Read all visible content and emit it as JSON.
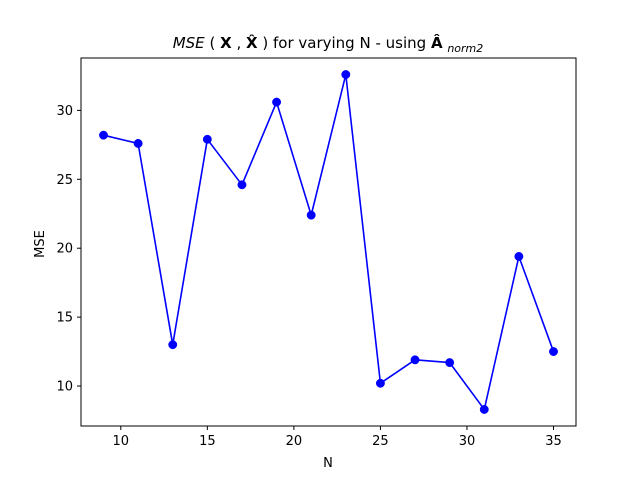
{
  "chart_data": {
    "type": "line",
    "title": "MSE(X, X̂) for varying N - using Â_norm2",
    "title_parts": {
      "mse": "MSE",
      "open": "(",
      "x": "X",
      "comma": ", ",
      "xhat": "X̂",
      "close": ")",
      "middle": " for varying N - using ",
      "ahat": "Â",
      "subscript": "norm2"
    },
    "xlabel": "N",
    "ylabel": "MSE",
    "xlim": [
      7.7,
      36.3
    ],
    "ylim": [
      7.1,
      33.8
    ],
    "xticks": [
      10,
      15,
      20,
      25,
      30,
      35
    ],
    "yticks": [
      10,
      15,
      20,
      25,
      30
    ],
    "grid": false,
    "legend": "none",
    "series": [
      {
        "color": "#0000ff",
        "marker": "circle",
        "x": [
          9,
          11,
          13,
          15,
          17,
          19,
          21,
          23,
          25,
          27,
          29,
          31,
          33,
          35
        ],
        "y": [
          28.2,
          27.6,
          13.0,
          27.9,
          24.6,
          30.6,
          22.4,
          32.6,
          10.2,
          11.9,
          11.7,
          8.3,
          19.4,
          12.5
        ]
      }
    ]
  }
}
